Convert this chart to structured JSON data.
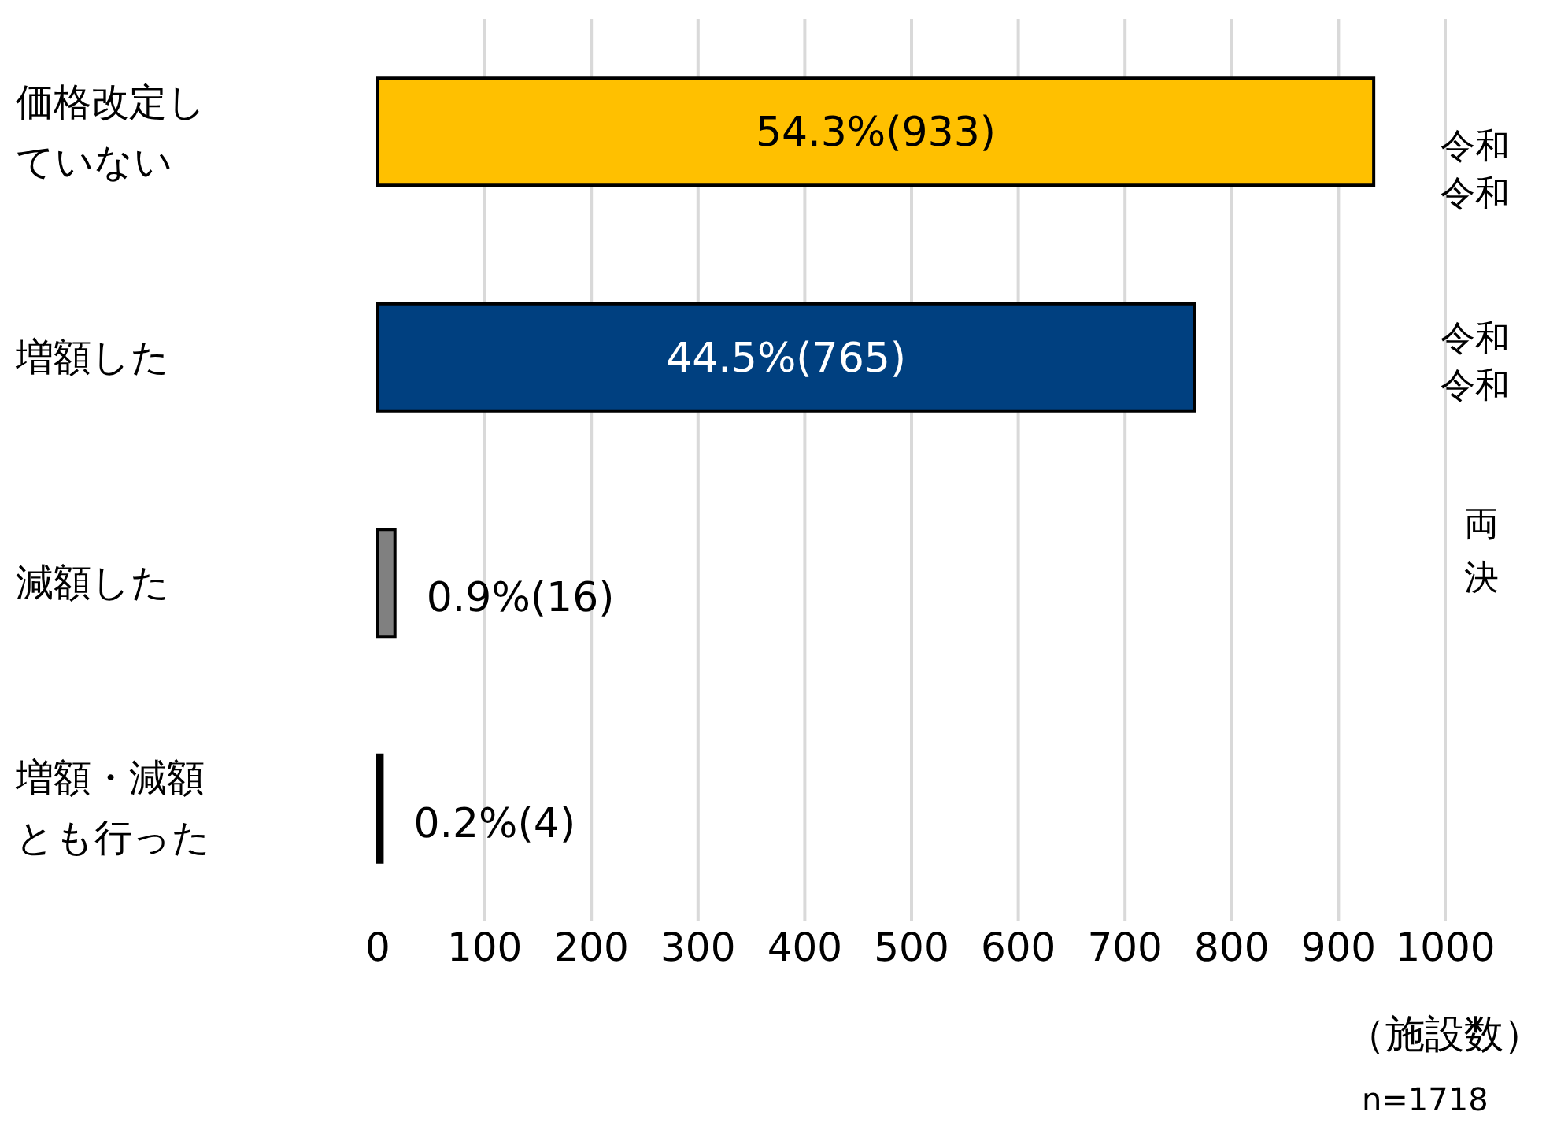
{
  "chart_data": {
    "type": "bar",
    "orientation": "horizontal",
    "categories": [
      "価格改定していない",
      "増額した",
      "減額した",
      "増額・減額とも行った"
    ],
    "values": [
      933,
      765,
      16,
      4
    ],
    "colors": [
      "#ffc000",
      "#004080",
      "#808080",
      "#000000"
    ],
    "value_labels": [
      "54.3%(933)",
      "44.5%(765)",
      "0.9%(16)",
      "0.2%(4)"
    ],
    "xlim": [
      0,
      1000
    ],
    "xticks": [
      0,
      100,
      200,
      300,
      400,
      500,
      600,
      700,
      800,
      900,
      1000
    ],
    "xlabel": "（施設数）",
    "grid": "x",
    "annotations": [
      "n=1718",
      "令和",
      "令和",
      "令和",
      "令和",
      "両",
      "決"
    ]
  }
}
